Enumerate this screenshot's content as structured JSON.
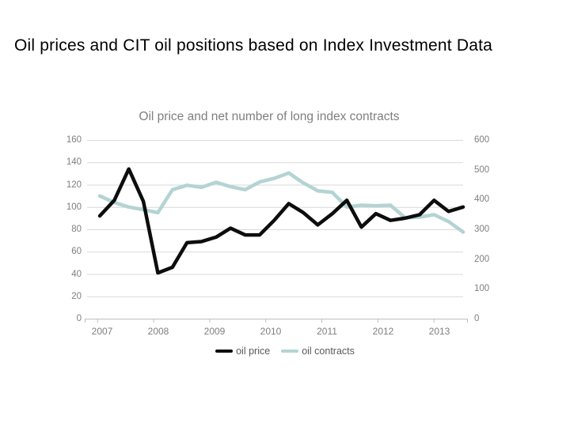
{
  "slide": {
    "title": "Oil prices and CIT oil positions based on Index Investment Data"
  },
  "chart": {
    "title": "Oil price and net number of long index contracts",
    "legend": [
      {
        "label": "oil price"
      },
      {
        "label": "oil contracts"
      }
    ]
  },
  "chart_data": {
    "type": "line",
    "title": "Oil price and net number of long index contracts",
    "x_description": "quarterly, 2007Q1 through 2013Q2",
    "x_tick_labels": [
      "2007",
      "2008",
      "2009",
      "2010",
      "2011",
      "2012",
      "2013"
    ],
    "y_left": {
      "ticks": [
        0,
        20,
        40,
        60,
        80,
        100,
        120,
        140,
        160
      ],
      "range": [
        0,
        160
      ]
    },
    "y_right": {
      "ticks": [
        0,
        100,
        200,
        300,
        400,
        500,
        600
      ],
      "range": [
        0,
        600
      ]
    },
    "grid": "horizontal",
    "legend_position": "bottom",
    "series": [
      {
        "name": "oil contracts",
        "axis": "right",
        "color": "#b3d4d3",
        "values": [
          412,
          390,
          375,
          366,
          356,
          433,
          448,
          441,
          458,
          443,
          433,
          459,
          471,
          489,
          456,
          429,
          424,
          375,
          381,
          379,
          381,
          339,
          341,
          349,
          326,
          291
        ]
      },
      {
        "name": "oil price",
        "axis": "left",
        "color": "#0d0d0d",
        "values": [
          92,
          106,
          134,
          105,
          41,
          46,
          68,
          69,
          73,
          81,
          75,
          75,
          88,
          103,
          95,
          84,
          94,
          106,
          82,
          94,
          88,
          90,
          93,
          106,
          96,
          100
        ]
      }
    ]
  }
}
